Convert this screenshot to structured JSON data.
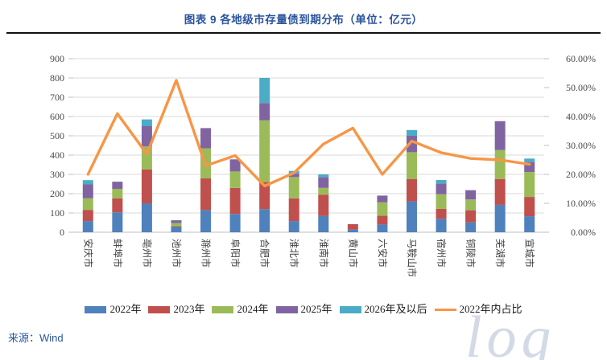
{
  "header": {
    "title": "图表 9 各地级市存量债到期分布（单位：亿元）"
  },
  "footer": {
    "source": "来源：Wind",
    "watermark": "log"
  },
  "colors": {
    "title_blue": "#2A549E",
    "grid": "#D9D9D9",
    "axis_line": "#BFBFBF",
    "axis_text": "#4A4A4A",
    "series_2022": "#4F81BD",
    "series_2023": "#C0504D",
    "series_2024": "#9BBB59",
    "series_2025": "#8064A2",
    "series_2026plus": "#4BACC6",
    "ratio_line": "#F79646"
  },
  "chart_data": {
    "type": "bar",
    "subtype": "stacked-bar-with-line",
    "title": "图表 9 各地级市存量债到期分布（单位：亿元）",
    "categories": [
      "安庆市",
      "蚌埠市",
      "亳州市",
      "池州市",
      "滁州市",
      "阜阳市",
      "合肥市",
      "淮北市",
      "淮南市",
      "黄山市",
      "六安市",
      "马鞍山市",
      "宿州市",
      "铜陵市",
      "芜湖市",
      "宣城市"
    ],
    "series": [
      {
        "name": "2022年",
        "color": "#4F81BD",
        "values": [
          58,
          103,
          150,
          27,
          115,
          95,
          120,
          58,
          85,
          14,
          40,
          160,
          70,
          51,
          142,
          83
        ]
      },
      {
        "name": "2023年",
        "color": "#C0504D",
        "values": [
          58,
          73,
          175,
          4,
          165,
          135,
          140,
          118,
          110,
          28,
          46,
          115,
          51,
          63,
          134,
          100
        ]
      },
      {
        "name": "2024年",
        "color": "#9BBB59",
        "values": [
          60,
          49,
          120,
          17,
          155,
          85,
          320,
          110,
          35,
          0,
          69,
          140,
          76,
          56,
          150,
          129
        ]
      },
      {
        "name": "2025年",
        "color": "#8064A2",
        "values": [
          72,
          37,
          105,
          14,
          105,
          63,
          90,
          19,
          55,
          0,
          35,
          85,
          56,
          48,
          150,
          52
        ]
      },
      {
        "name": "2026年及以后",
        "color": "#4BACC6",
        "values": [
          22,
          0,
          35,
          0,
          0,
          0,
          130,
          13,
          15,
          0,
          0,
          30,
          18,
          0,
          0,
          18
        ]
      }
    ],
    "line_series": {
      "name": "2022年内占比",
      "color": "#F79646",
      "values_percent": [
        20.0,
        41.0,
        27.0,
        52.5,
        23.0,
        26.5,
        16.0,
        20.5,
        30.5,
        36.0,
        20.0,
        31.5,
        27.5,
        25.5,
        25.0,
        23.5
      ]
    },
    "left_axis": {
      "min": 0,
      "max": 900,
      "step": 100,
      "tick_labels": [
        "0",
        "100",
        "200",
        "300",
        "400",
        "500",
        "600",
        "700",
        "800",
        "900"
      ]
    },
    "right_axis": {
      "min": 0,
      "max": 60,
      "step": 10,
      "tick_labels": [
        "0.00%",
        "10.00%",
        "20.00%",
        "30.00%",
        "40.00%",
        "50.00%",
        "60.00%"
      ]
    },
    "legend_position": "bottom",
    "grid": "horizontal",
    "legend": [
      "2022年",
      "2023年",
      "2024年",
      "2025年",
      "2026年及以后",
      "2022年内占比"
    ]
  }
}
